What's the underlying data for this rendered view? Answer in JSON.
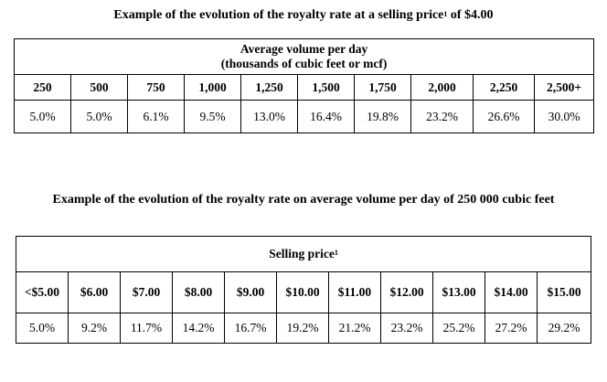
{
  "doc": {
    "title1_main": "Example of the evolution of the royalty rate at a selling price",
    "title1_sup": "1",
    "title1_tail": " of $4.00",
    "title2": "Example of the evolution of the royalty rate on average volume per day of 250 000 cubic feet"
  },
  "table1": {
    "header_line1": "Average volume per day",
    "header_line2": "(thousands of cubic feet or mcf)",
    "columns": [
      "250",
      "500",
      "750",
      "1,000",
      "1,250",
      "1,500",
      "1,750",
      "2,000",
      "2,250",
      "2,500+"
    ],
    "values": [
      "5.0%",
      "5.0%",
      "6.1%",
      "9.5%",
      "13.0%",
      "16.4%",
      "19.8%",
      "23.2%",
      "26.6%",
      "30.0%"
    ]
  },
  "table2": {
    "header": "Selling price",
    "header_sup": "1",
    "columns": [
      "<$5.00",
      "$6.00",
      "$7.00",
      "$8.00",
      "$9.00",
      "$10.00",
      "$11.00",
      "$12.00",
      "$13.00",
      "$14.00",
      "$15.00"
    ],
    "values": [
      "5.0%",
      "9.2%",
      "11.7%",
      "14.2%",
      "16.7%",
      "19.2%",
      "21.2%",
      "23.2%",
      "25.2%",
      "27.2%",
      "29.2%"
    ]
  }
}
